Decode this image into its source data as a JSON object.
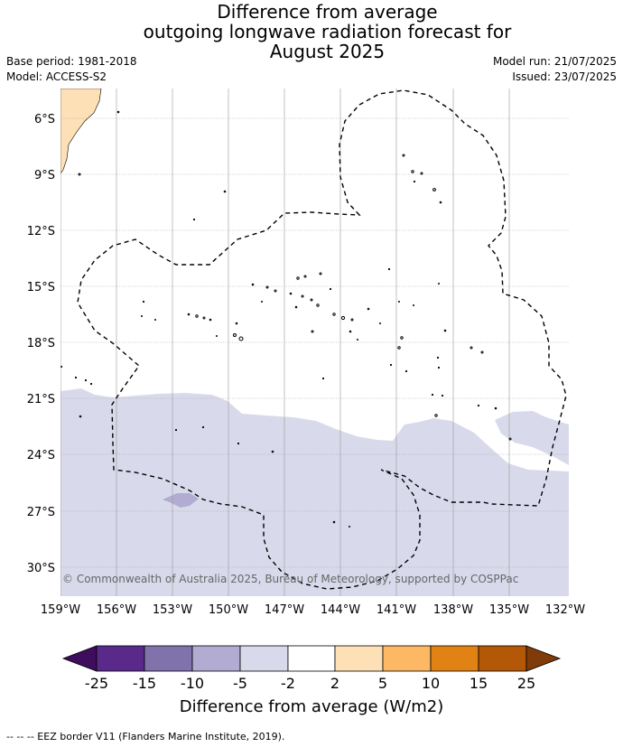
{
  "title": [
    "Difference from average",
    "outgoing longwave radiation forecast for",
    "August 2025"
  ],
  "meta_left": [
    "Base period: 1981-2018",
    "Model: ACCESS-S2"
  ],
  "meta_right": [
    "Model run: 21/07/2025",
    "Issued: 23/07/2025"
  ],
  "lat_labels": [
    "6°S",
    "9°S",
    "12°S",
    "15°S",
    "18°S",
    "21°S",
    "24°S",
    "27°S",
    "30°S"
  ],
  "lon_labels": [
    "159°W",
    "156°W",
    "153°W",
    "150°W",
    "147°W",
    "144°W",
    "141°W",
    "138°W",
    "135°W",
    "132°W"
  ],
  "copyright": "© Commonwealth of Australia 2025, Bureau of Meteorology, supported by COSPPac",
  "colorbar": {
    "title": "Difference from average (W/m2)",
    "ticks": [
      "-25",
      "-15",
      "-10",
      "-5",
      "-2",
      "2",
      "5",
      "10",
      "15",
      "25"
    ],
    "colors": [
      "#3f0d5e",
      "#5a2a8a",
      "#8073ac",
      "#b2abd2",
      "#d8daeb",
      "#ffffff",
      "#fee0b6",
      "#fdb863",
      "#e08214",
      "#b35806",
      "#7f3b08"
    ]
  },
  "footer": "-- -- -- EEZ border V11 (Flanders Marine Institute, 2019)."
}
